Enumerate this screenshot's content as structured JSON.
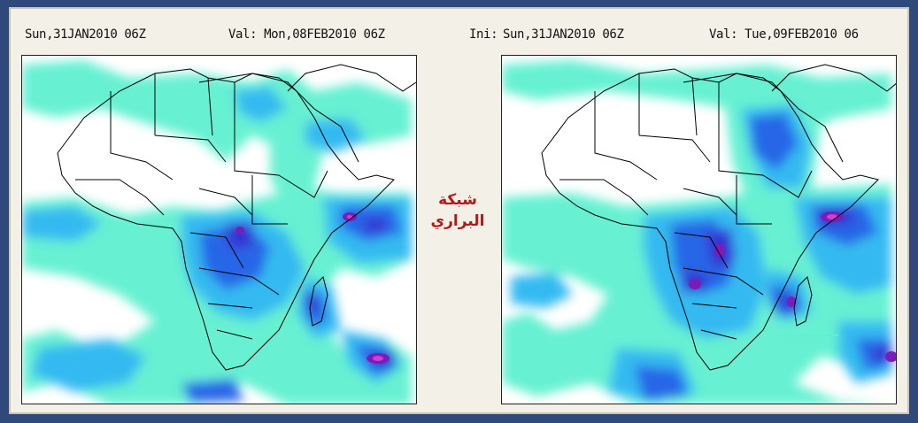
{
  "left_panel": {
    "init_label": "Sun,31JAN2010 06Z",
    "valid_label": "Val: Mon,08FEB2010 06Z"
  },
  "right_panel": {
    "init_prefix": "Ini:",
    "init_label": "Sun,31JAN2010 06Z",
    "valid_label": "Val: Tue,09FEB2010 06"
  },
  "watermark": {
    "line1": "شبكة",
    "line2": "البراري"
  },
  "colors": {
    "light": "#5ff0d0",
    "mid": "#2ab7f0",
    "blue": "#1f5fe6",
    "deep": "#2a2ad0",
    "purple": "#7a1cb8",
    "magenta": "#d040d0",
    "border": "#000000",
    "background": "#ffffff"
  }
}
